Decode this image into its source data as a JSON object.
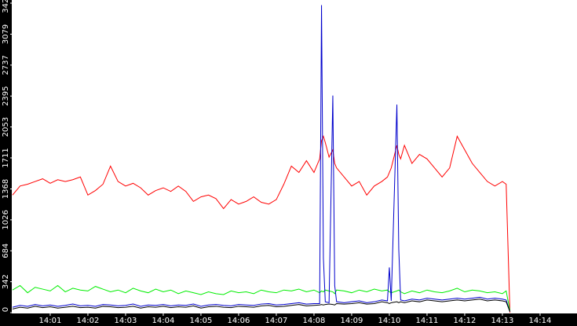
{
  "chart_data": {
    "type": "line",
    "x": [
      0,
      0.2,
      0.4,
      0.6,
      0.8,
      1,
      1.2,
      1.4,
      1.6,
      1.8,
      2,
      2.2,
      2.4,
      2.6,
      2.8,
      3,
      3.2,
      3.4,
      3.6,
      3.8,
      4,
      4.2,
      4.4,
      4.6,
      4.8,
      5,
      5.2,
      5.4,
      5.6,
      5.8,
      6,
      6.2,
      6.4,
      6.6,
      6.8,
      7,
      7.2,
      7.4,
      7.6,
      7.8,
      8,
      8.15,
      8.2,
      8.25,
      8.3,
      8.4,
      8.5,
      8.55,
      8.6,
      8.8,
      9,
      9.2,
      9.4,
      9.6,
      9.8,
      9.95,
      10,
      10.05,
      10.2,
      10.25,
      10.3,
      10.4,
      10.6,
      10.8,
      11,
      11.2,
      11.4,
      11.6,
      11.8,
      12,
      12.2,
      12.4,
      12.6,
      12.8,
      13,
      13.1,
      13.2
    ],
    "series": [
      {
        "color": "#ff0000",
        "values": [
          1300,
          1400,
          1420,
          1450,
          1480,
          1430,
          1470,
          1450,
          1470,
          1500,
          1300,
          1350,
          1420,
          1620,
          1450,
          1400,
          1430,
          1380,
          1300,
          1350,
          1380,
          1340,
          1400,
          1340,
          1230,
          1280,
          1300,
          1260,
          1150,
          1250,
          1200,
          1230,
          1280,
          1220,
          1200,
          1250,
          1420,
          1620,
          1550,
          1680,
          1550,
          1700,
          1900,
          1950,
          1880,
          1720,
          1800,
          1650,
          1600,
          1500,
          1400,
          1450,
          1300,
          1400,
          1450,
          1500,
          1550,
          1600,
          1850,
          1750,
          1700,
          1850,
          1650,
          1750,
          1700,
          1600,
          1500,
          1600,
          1950,
          1800,
          1650,
          1550,
          1450,
          1400,
          1450,
          1420,
          0
        ]
      },
      {
        "color": "#00ee00",
        "values": [
          250,
          300,
          220,
          280,
          260,
          240,
          300,
          230,
          270,
          250,
          240,
          290,
          260,
          230,
          250,
          220,
          270,
          240,
          220,
          260,
          230,
          250,
          210,
          240,
          220,
          200,
          230,
          210,
          200,
          240,
          220,
          230,
          210,
          250,
          230,
          220,
          250,
          240,
          260,
          230,
          250,
          220,
          240,
          230,
          250,
          240,
          230,
          210,
          250,
          240,
          220,
          250,
          230,
          260,
          240,
          250,
          230,
          220,
          240,
          250,
          230,
          210,
          240,
          220,
          250,
          230,
          220,
          240,
          270,
          230,
          250,
          240,
          220,
          230,
          210,
          240,
          20
        ]
      },
      {
        "color": "#0000cc",
        "values": [
          60,
          80,
          70,
          90,
          75,
          85,
          70,
          80,
          95,
          75,
          80,
          70,
          90,
          85,
          75,
          80,
          95,
          70,
          85,
          80,
          90,
          75,
          85,
          80,
          95,
          70,
          85,
          90,
          80,
          75,
          90,
          85,
          80,
          95,
          100,
          85,
          90,
          100,
          110,
          95,
          100,
          100,
          3400,
          600,
          120,
          110,
          2400,
          300,
          120,
          110,
          120,
          130,
          110,
          120,
          140,
          130,
          500,
          130,
          2300,
          700,
          140,
          130,
          150,
          140,
          160,
          150,
          140,
          150,
          160,
          150,
          160,
          170,
          150,
          160,
          150,
          140,
          10
        ]
      },
      {
        "color": "#000000",
        "values": [
          40,
          60,
          50,
          70,
          55,
          65,
          50,
          60,
          70,
          55,
          60,
          50,
          70,
          65,
          55,
          60,
          70,
          50,
          65,
          60,
          70,
          55,
          65,
          60,
          75,
          50,
          65,
          70,
          60,
          55,
          70,
          65,
          60,
          75,
          80,
          65,
          70,
          80,
          90,
          75,
          80,
          85,
          90,
          85,
          90,
          95,
          90,
          85,
          100,
          95,
          100,
          110,
          95,
          100,
          120,
          110,
          100,
          110,
          120,
          110,
          120,
          110,
          130,
          120,
          140,
          130,
          120,
          130,
          140,
          130,
          140,
          150,
          130,
          140,
          130,
          120,
          10
        ]
      }
    ],
    "xlim": [
      -0.02,
      14.98
    ],
    "xticks": [
      {
        "value": 1,
        "label": "14:01"
      },
      {
        "value": 2,
        "label": "14:02"
      },
      {
        "value": 3,
        "label": "14:03"
      },
      {
        "value": 4,
        "label": "14:04"
      },
      {
        "value": 5,
        "label": "14:05"
      },
      {
        "value": 6,
        "label": "14:06"
      },
      {
        "value": 7,
        "label": "14:07"
      },
      {
        "value": 8,
        "label": "14:08"
      },
      {
        "value": 9,
        "label": "14:09"
      },
      {
        "value": 10,
        "label": "14:10"
      },
      {
        "value": 11,
        "label": "14:11"
      },
      {
        "value": 12,
        "label": "14:12"
      },
      {
        "value": 13,
        "label": "14:13"
      },
      {
        "value": 14,
        "label": "14:14"
      }
    ],
    "ylim": [
      0,
      3422
    ],
    "yticks": [
      0,
      342,
      684,
      1026,
      1368,
      1711,
      2053,
      2395,
      2737,
      3079,
      3422
    ]
  }
}
